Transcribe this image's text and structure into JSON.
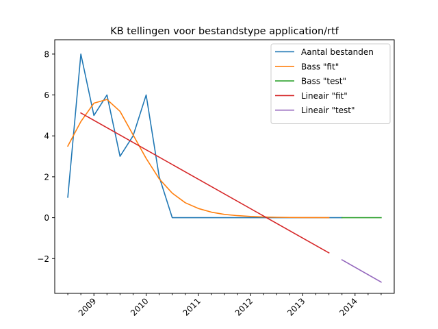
{
  "chart_data": {
    "type": "line",
    "title": "KB tellingen voor bestandstype application/rtf",
    "xlabel": "",
    "ylabel": "",
    "x_range": [
      2008.25,
      2014.75
    ],
    "ylim": [
      -3.7,
      8.7
    ],
    "y_ticks": [
      {
        "value": -2,
        "label": "−2"
      },
      {
        "value": 0,
        "label": "0"
      },
      {
        "value": 2,
        "label": "2"
      },
      {
        "value": 4,
        "label": "4"
      },
      {
        "value": 6,
        "label": "6"
      },
      {
        "value": 8,
        "label": "8"
      }
    ],
    "x_major_ticks": [
      {
        "value": 2009.0,
        "label": "2009"
      },
      {
        "value": 2010.0,
        "label": "2010"
      },
      {
        "value": 2011.0,
        "label": "2011"
      },
      {
        "value": 2012.0,
        "label": "2012"
      },
      {
        "value": 2013.0,
        "label": "2013"
      },
      {
        "value": 2014.0,
        "label": "2014"
      }
    ],
    "x_minor_ticks": [
      2008.5,
      2008.75,
      2009.25,
      2009.5,
      2009.75,
      2010.25,
      2010.5,
      2010.75,
      2011.25,
      2011.5,
      2011.75,
      2012.25,
      2012.5,
      2012.75,
      2013.25,
      2013.5,
      2013.75,
      2014.25,
      2014.5
    ],
    "grid": false,
    "legend_position": "top-right",
    "series": [
      {
        "name": "Aantal bestanden",
        "color": "#1f77b4",
        "x": [
          2008.5,
          2008.75,
          2009.0,
          2009.25,
          2009.5,
          2009.75,
          2010.0,
          2010.25,
          2010.5,
          2010.75,
          2011.0,
          2011.25,
          2011.5,
          2011.75,
          2012.0,
          2012.25,
          2012.5,
          2012.75,
          2013.0,
          2013.25,
          2013.5,
          2013.75
        ],
        "y": [
          1,
          8,
          5,
          6,
          3,
          4,
          6,
          2,
          0,
          0,
          0,
          0,
          0,
          0,
          0,
          0,
          0,
          0,
          0,
          0,
          0,
          0
        ]
      },
      {
        "name": "Bass \"fit\"",
        "color": "#ff7f0e",
        "x": [
          2008.5,
          2008.75,
          2009.0,
          2009.25,
          2009.5,
          2009.75,
          2010.0,
          2010.25,
          2010.5,
          2010.75,
          2011.0,
          2011.25,
          2011.5,
          2011.75,
          2012.0,
          2012.25,
          2012.5,
          2012.75,
          2013.0,
          2013.25,
          2013.5
        ],
        "y": [
          3.5,
          4.7,
          5.6,
          5.78,
          5.2,
          4.05,
          2.9,
          1.9,
          1.2,
          0.73,
          0.45,
          0.27,
          0.16,
          0.1,
          0.06,
          0.035,
          0.02,
          0.012,
          0.007,
          0.004,
          0.002
        ]
      },
      {
        "name": "Bass \"test\"",
        "color": "#2ca02c",
        "x": [
          2013.75,
          2014.0,
          2014.25,
          2014.5
        ],
        "y": [
          0,
          0,
          0,
          0
        ]
      },
      {
        "name": "Lineair \"fit\"",
        "color": "#d62728",
        "x": [
          2008.75,
          2013.5
        ],
        "y": [
          5.12,
          -1.72
        ]
      },
      {
        "name": "Lineair \"test\"",
        "color": "#9467bd",
        "x": [
          2013.75,
          2014.5
        ],
        "y": [
          -2.06,
          -3.15
        ]
      }
    ]
  }
}
